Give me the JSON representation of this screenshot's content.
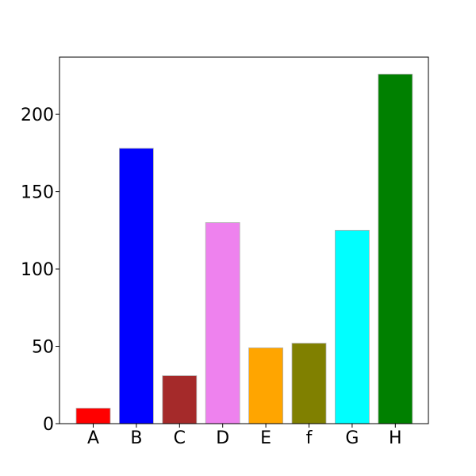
{
  "chart_data": {
    "type": "bar",
    "title": "",
    "xlabel": "",
    "ylabel": "",
    "categories": [
      "A",
      "B",
      "C",
      "D",
      "E",
      "f",
      "G",
      "H"
    ],
    "values": [
      10,
      178,
      31,
      130,
      49,
      52,
      125,
      226
    ],
    "colors": [
      "#ff0000",
      "#0000ff",
      "#a52a2a",
      "#ee82ee",
      "#ffa500",
      "#808000",
      "#00ffff",
      "#008000"
    ],
    "ylim": [
      0,
      237
    ],
    "yticks": [
      0,
      50,
      100,
      150,
      200
    ],
    "grid": false,
    "legend": "none"
  }
}
